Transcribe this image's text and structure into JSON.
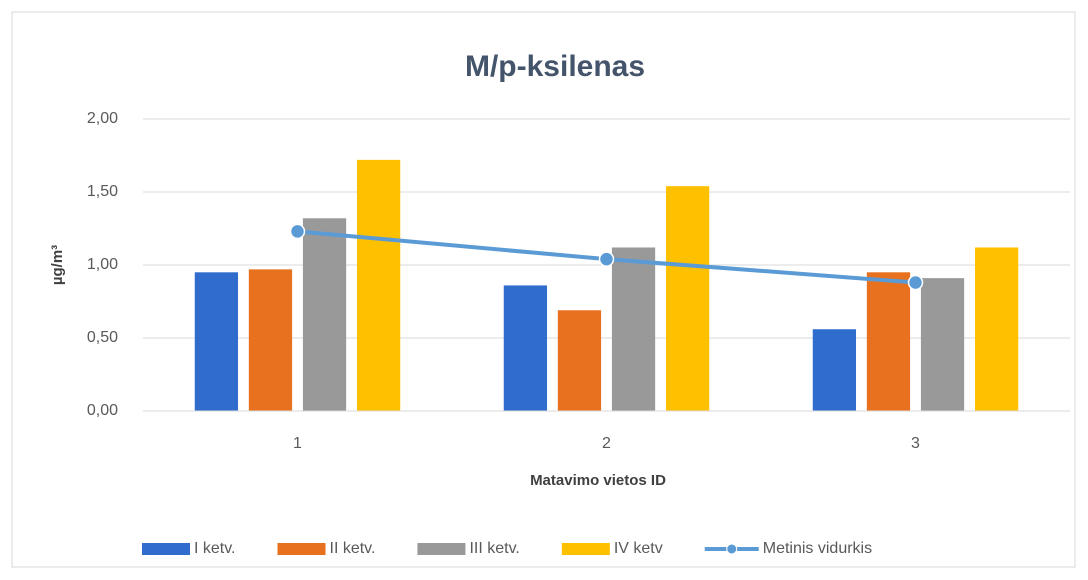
{
  "chart_data": {
    "type": "bar",
    "title": "M/p-ksilenas",
    "x_label": "Matavimo vietos ID",
    "y_label": "µg/m³",
    "categories": [
      "1",
      "2",
      "3"
    ],
    "series": [
      {
        "name": "I ketv.",
        "color": "#2f6ccc",
        "values": [
          0.95,
          0.86,
          0.56
        ]
      },
      {
        "name": "II ketv.",
        "color": "#e8711f",
        "values": [
          0.97,
          0.69,
          0.95
        ]
      },
      {
        "name": "III ketv.",
        "color": "#999999",
        "values": [
          1.32,
          1.12,
          0.91
        ]
      },
      {
        "name": "IV ketv",
        "color": "#ffc000",
        "values": [
          1.72,
          1.54,
          1.12
        ]
      },
      {
        "name": "Metinis vidurkis",
        "color": "#5b9bd5",
        "type": "line",
        "values": [
          1.23,
          1.04,
          0.88
        ]
      }
    ],
    "ylim": [
      0,
      2
    ],
    "yticks": [
      {
        "value": 0,
        "label": "0,00"
      },
      {
        "value": 0.5,
        "label": "0,50"
      },
      {
        "value": 1,
        "label": "1,00"
      },
      {
        "value": 1.5,
        "label": "1,50"
      },
      {
        "value": 2,
        "label": "2,00"
      }
    ],
    "grid": true,
    "legend": "bottom"
  }
}
